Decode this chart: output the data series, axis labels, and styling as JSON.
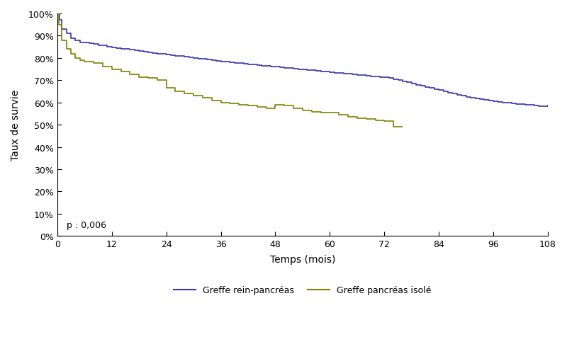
{
  "title": "",
  "xlabel": "Temps (mois)",
  "ylabel": "Taux de survie",
  "pvalue_text": "p : 0,006",
  "xlim": [
    0,
    108
  ],
  "ylim": [
    0.0,
    1.0
  ],
  "xticks": [
    0,
    12,
    24,
    36,
    48,
    60,
    72,
    84,
    96,
    108
  ],
  "yticks": [
    0.0,
    0.1,
    0.2,
    0.3,
    0.4,
    0.5,
    0.6,
    0.7,
    0.8,
    0.9,
    1.0
  ],
  "ytick_labels": [
    "0%",
    "10%",
    "20%",
    "30%",
    "40%",
    "50%",
    "60%",
    "70%",
    "80%",
    "90%",
    "100%"
  ],
  "color_combined": "#3333aa",
  "color_isolated": "#808000",
  "legend_labels": [
    "Greffe rein-pancréas",
    "Greffe pancréas isolé"
  ],
  "combined_x": [
    0,
    0.5,
    1,
    2,
    3,
    4,
    5,
    6,
    7,
    8,
    9,
    10,
    11,
    12,
    13,
    14,
    15,
    16,
    17,
    18,
    19,
    20,
    21,
    22,
    23,
    24,
    25,
    26,
    27,
    28,
    29,
    30,
    31,
    32,
    33,
    34,
    35,
    36,
    37,
    38,
    39,
    40,
    41,
    42,
    43,
    44,
    45,
    46,
    47,
    48,
    49,
    50,
    51,
    52,
    53,
    54,
    55,
    56,
    57,
    58,
    59,
    60,
    61,
    62,
    63,
    64,
    65,
    66,
    67,
    68,
    69,
    70,
    71,
    72,
    73,
    74,
    75,
    76,
    77,
    78,
    79,
    80,
    81,
    82,
    83,
    84,
    85,
    86,
    87,
    88,
    89,
    90,
    91,
    92,
    93,
    94,
    95,
    96,
    97,
    98,
    99,
    100,
    101,
    102,
    103,
    104,
    105,
    106,
    107,
    108
  ],
  "combined_y": [
    1.0,
    0.97,
    0.93,
    0.91,
    0.89,
    0.88,
    0.87,
    0.87,
    0.865,
    0.862,
    0.858,
    0.856,
    0.852,
    0.848,
    0.845,
    0.842,
    0.84,
    0.837,
    0.834,
    0.83,
    0.828,
    0.825,
    0.822,
    0.82,
    0.818,
    0.815,
    0.812,
    0.81,
    0.808,
    0.806,
    0.803,
    0.8,
    0.797,
    0.795,
    0.793,
    0.79,
    0.788,
    0.785,
    0.782,
    0.78,
    0.778,
    0.776,
    0.774,
    0.772,
    0.77,
    0.768,
    0.766,
    0.764,
    0.762,
    0.76,
    0.758,
    0.756,
    0.754,
    0.752,
    0.75,
    0.748,
    0.746,
    0.744,
    0.742,
    0.74,
    0.738,
    0.736,
    0.734,
    0.732,
    0.73,
    0.728,
    0.726,
    0.724,
    0.722,
    0.72,
    0.718,
    0.716,
    0.714,
    0.712,
    0.71,
    0.705,
    0.7,
    0.695,
    0.69,
    0.685,
    0.68,
    0.675,
    0.67,
    0.665,
    0.66,
    0.655,
    0.65,
    0.645,
    0.64,
    0.635,
    0.63,
    0.626,
    0.622,
    0.618,
    0.614,
    0.611,
    0.608,
    0.605,
    0.602,
    0.6,
    0.598,
    0.596,
    0.594,
    0.592,
    0.59,
    0.588,
    0.586,
    0.584,
    0.582,
    0.59
  ],
  "isolated_x": [
    0,
    0.3,
    1,
    2,
    3,
    4,
    5,
    6,
    8,
    10,
    12,
    14,
    16,
    18,
    20,
    22,
    24,
    26,
    28,
    30,
    32,
    34,
    36,
    38,
    40,
    42,
    44,
    46,
    48,
    50,
    52,
    54,
    56,
    58,
    60,
    62,
    64,
    66,
    68,
    70,
    72,
    74,
    76
  ],
  "isolated_y": [
    1.0,
    0.95,
    0.88,
    0.84,
    0.82,
    0.8,
    0.79,
    0.785,
    0.778,
    0.76,
    0.75,
    0.74,
    0.725,
    0.715,
    0.71,
    0.7,
    0.665,
    0.65,
    0.64,
    0.63,
    0.62,
    0.61,
    0.6,
    0.595,
    0.59,
    0.585,
    0.58,
    0.575,
    0.59,
    0.585,
    0.575,
    0.565,
    0.558,
    0.555,
    0.555,
    0.545,
    0.535,
    0.53,
    0.525,
    0.52,
    0.515,
    0.49,
    0.49
  ]
}
